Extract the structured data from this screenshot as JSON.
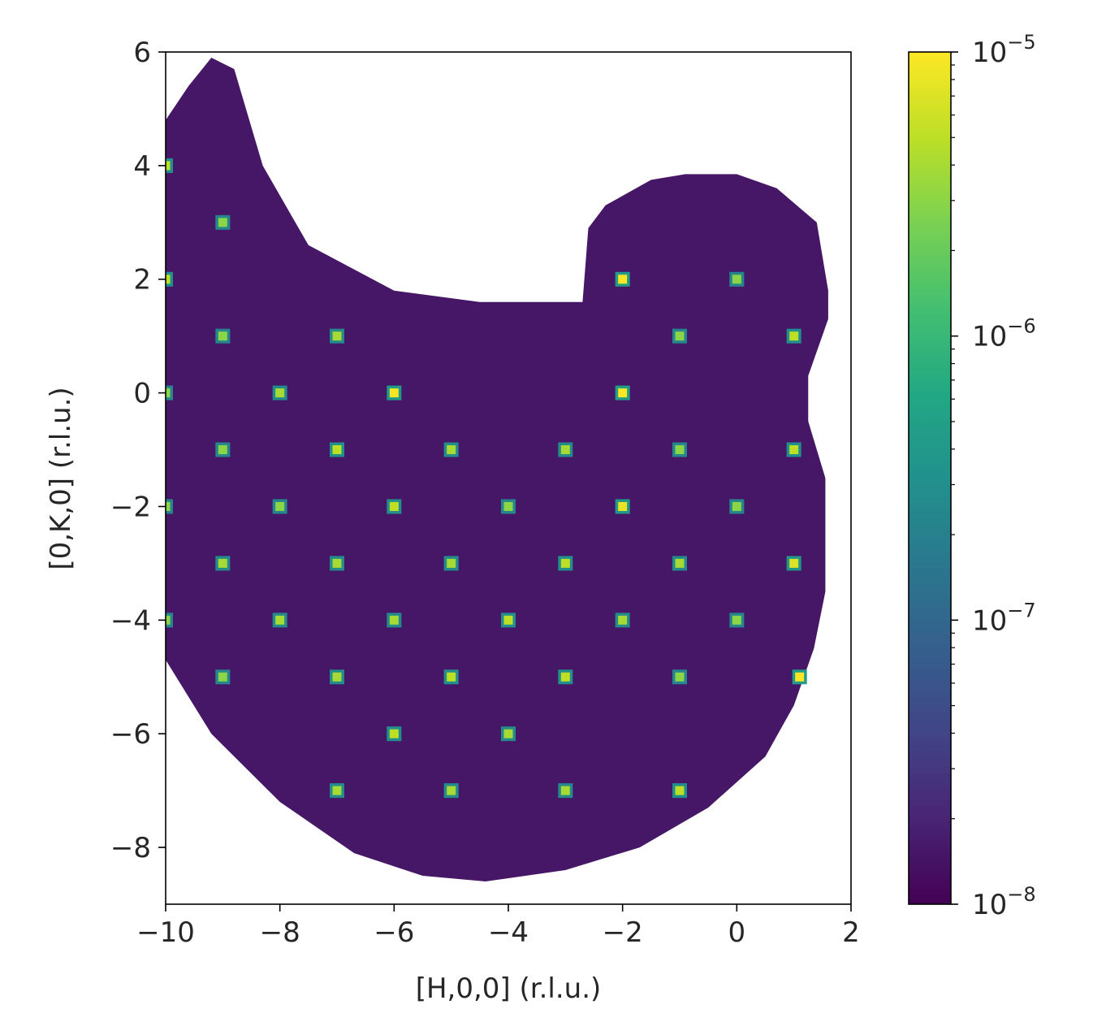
{
  "chart_data": {
    "type": "heatmap",
    "title": "",
    "xlabel": "[H,0,0] (r.l.u.)",
    "ylabel": "[0,K,0] (r.l.u.)",
    "xlim": [
      -10,
      2
    ],
    "ylim": [
      -9,
      6
    ],
    "xticks": [
      -10,
      -8,
      -6,
      -4,
      -2,
      0,
      2
    ],
    "yticks": [
      -8,
      -6,
      -4,
      -2,
      0,
      2,
      4,
      6
    ],
    "xtick_labels": [
      "−10",
      "−8",
      "−6",
      "−4",
      "−2",
      "0",
      "2"
    ],
    "ytick_labels": [
      "−8",
      "−6",
      "−4",
      "−2",
      "0",
      "2",
      "4",
      "6"
    ],
    "colorscale": "viridis",
    "color_scale_type": "log",
    "color_range": [
      1e-08,
      1e-05
    ],
    "background_intensity": 1.5e-08,
    "colorbar": {
      "placement": "right",
      "ticks": [
        {
          "base": "10",
          "exp": "−8",
          "value": 1e-08
        },
        {
          "base": "10",
          "exp": "−7",
          "value": 1e-07
        },
        {
          "base": "10",
          "exp": "−6",
          "value": 1e-06
        },
        {
          "base": "10",
          "exp": "−5",
          "value": 1e-05
        }
      ]
    },
    "coverage_region": [
      [
        -10,
        4.8
      ],
      [
        -9.6,
        5.4
      ],
      [
        -9.2,
        5.9
      ],
      [
        -8.8,
        5.7
      ],
      [
        -8.3,
        4.0
      ],
      [
        -7.5,
        2.6
      ],
      [
        -6,
        1.8
      ],
      [
        -4.5,
        1.6
      ],
      [
        -2.7,
        1.6
      ],
      [
        -2.6,
        2.9
      ],
      [
        -2.3,
        3.3
      ],
      [
        -1.5,
        3.75
      ],
      [
        -0.9,
        3.85
      ],
      [
        0,
        3.85
      ],
      [
        0.7,
        3.6
      ],
      [
        1.4,
        3.0
      ],
      [
        1.6,
        1.8
      ],
      [
        1.6,
        1.3
      ],
      [
        1.25,
        0.3
      ],
      [
        1.25,
        -0.5
      ],
      [
        1.55,
        -1.5
      ],
      [
        1.55,
        -3.5
      ],
      [
        1.35,
        -4.5
      ],
      [
        1.0,
        -5.5
      ],
      [
        0.5,
        -6.4
      ],
      [
        -0.5,
        -7.3
      ],
      [
        -1.7,
        -8.0
      ],
      [
        -3.0,
        -8.4
      ],
      [
        -4.4,
        -8.6
      ],
      [
        -5.5,
        -8.5
      ],
      [
        -6.7,
        -8.1
      ],
      [
        -8.0,
        -7.2
      ],
      [
        -9.2,
        -6.0
      ],
      [
        -10,
        -4.7
      ]
    ],
    "peaks": [
      {
        "h": -10,
        "k": 4,
        "intensity": 5e-06
      },
      {
        "h": -10,
        "k": 2,
        "intensity": 5e-06
      },
      {
        "h": -10,
        "k": 0,
        "intensity": 3e-06
      },
      {
        "h": -10,
        "k": -2,
        "intensity": 3e-06
      },
      {
        "h": -10,
        "k": -4,
        "intensity": 3e-06
      },
      {
        "h": -9,
        "k": 3,
        "intensity": 3e-06
      },
      {
        "h": -9,
        "k": 1,
        "intensity": 3e-06
      },
      {
        "h": -9,
        "k": -1,
        "intensity": 3e-06
      },
      {
        "h": -9,
        "k": -3,
        "intensity": 4e-06
      },
      {
        "h": -9,
        "k": -5,
        "intensity": 3e-06
      },
      {
        "h": -8,
        "k": 0,
        "intensity": 4e-06
      },
      {
        "h": -8,
        "k": -2,
        "intensity": 3e-06
      },
      {
        "h": -8,
        "k": -4,
        "intensity": 4e-06
      },
      {
        "h": -7,
        "k": 1,
        "intensity": 4e-06
      },
      {
        "h": -7,
        "k": -1,
        "intensity": 5e-06
      },
      {
        "h": -7,
        "k": -3,
        "intensity": 4e-06
      },
      {
        "h": -7,
        "k": -5,
        "intensity": 4e-06
      },
      {
        "h": -7,
        "k": -7,
        "intensity": 4e-06
      },
      {
        "h": -6,
        "k": 0,
        "intensity": 9e-06
      },
      {
        "h": -6,
        "k": -2,
        "intensity": 5e-06
      },
      {
        "h": -6,
        "k": -4,
        "intensity": 4e-06
      },
      {
        "h": -6,
        "k": -6,
        "intensity": 5e-06
      },
      {
        "h": -5,
        "k": -1,
        "intensity": 4e-06
      },
      {
        "h": -5,
        "k": -3,
        "intensity": 4e-06
      },
      {
        "h": -5,
        "k": -5,
        "intensity": 5e-06
      },
      {
        "h": -5,
        "k": -7,
        "intensity": 4e-06
      },
      {
        "h": -4,
        "k": -2,
        "intensity": 3e-06
      },
      {
        "h": -4,
        "k": -4,
        "intensity": 5e-06
      },
      {
        "h": -4,
        "k": -6,
        "intensity": 4e-06
      },
      {
        "h": -3,
        "k": -1,
        "intensity": 4e-06
      },
      {
        "h": -3,
        "k": -3,
        "intensity": 5e-06
      },
      {
        "h": -3,
        "k": -5,
        "intensity": 5e-06
      },
      {
        "h": -3,
        "k": -7,
        "intensity": 4e-06
      },
      {
        "h": -2,
        "k": 2,
        "intensity": 1e-05
      },
      {
        "h": -2,
        "k": 0,
        "intensity": 1e-05
      },
      {
        "h": -2,
        "k": -2,
        "intensity": 8e-06
      },
      {
        "h": -2,
        "k": -4,
        "intensity": 4e-06
      },
      {
        "h": -1,
        "k": 1,
        "intensity": 3e-06
      },
      {
        "h": -1,
        "k": -1,
        "intensity": 3e-06
      },
      {
        "h": -1,
        "k": -3,
        "intensity": 4e-06
      },
      {
        "h": -1,
        "k": -5,
        "intensity": 3e-06
      },
      {
        "h": -1,
        "k": -7,
        "intensity": 5e-06
      },
      {
        "h": 0,
        "k": 2,
        "intensity": 3e-06
      },
      {
        "h": 0,
        "k": -2,
        "intensity": 3e-06
      },
      {
        "h": 0,
        "k": -4,
        "intensity": 3e-06
      },
      {
        "h": 1,
        "k": 1,
        "intensity": 5e-06
      },
      {
        "h": 1,
        "k": -1,
        "intensity": 5e-06
      },
      {
        "h": 1,
        "k": -3,
        "intensity": 7e-06
      },
      {
        "h": 1.1,
        "k": -5,
        "intensity": 1e-05
      }
    ]
  }
}
